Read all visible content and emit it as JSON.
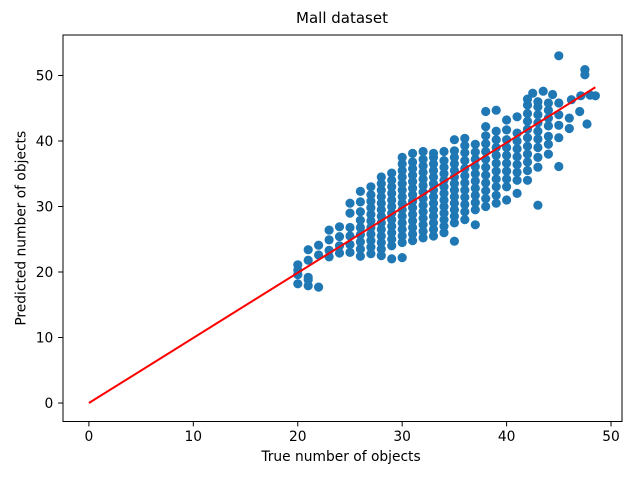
{
  "chart_data": {
    "type": "scatter",
    "title": "Mall dataset",
    "xlabel": "True number of objects",
    "ylabel": "Predicted number of objects",
    "xlim": [
      -2.48,
      51.05
    ],
    "ylim": [
      -2.82,
      56.18
    ],
    "xticks": [
      0,
      10,
      20,
      30,
      40,
      50
    ],
    "yticks": [
      0,
      10,
      20,
      30,
      40,
      50
    ],
    "grid": false,
    "legend": false,
    "marker_color": "#1f77b4",
    "identity_line": {
      "color": "#ff0000",
      "x": [
        0,
        48.5
      ],
      "y": [
        0,
        48.2
      ]
    },
    "points": [
      [
        20,
        18.2
      ],
      [
        20,
        19.6
      ],
      [
        20,
        20.3
      ],
      [
        20,
        21.1
      ],
      [
        21,
        17.9
      ],
      [
        21,
        18.8
      ],
      [
        21,
        19.2
      ],
      [
        21,
        21.8
      ],
      [
        21,
        23.4
      ],
      [
        22,
        17.7
      ],
      [
        22,
        22.6
      ],
      [
        22,
        24.1
      ],
      [
        23,
        22.3
      ],
      [
        23,
        23.3
      ],
      [
        23,
        24.9
      ],
      [
        23,
        26.4
      ],
      [
        24,
        22.9
      ],
      [
        24,
        24.0
      ],
      [
        24,
        25.4
      ],
      [
        24,
        26.9
      ],
      [
        25,
        23.0
      ],
      [
        25,
        24.2
      ],
      [
        25,
        25.5
      ],
      [
        25,
        26.8
      ],
      [
        25,
        29.0
      ],
      [
        25,
        30.5
      ],
      [
        26,
        22.4
      ],
      [
        26,
        23.5
      ],
      [
        26,
        24.6
      ],
      [
        26,
        25.7
      ],
      [
        26,
        26.8
      ],
      [
        26,
        27.9
      ],
      [
        26,
        29.2
      ],
      [
        26,
        30.7
      ],
      [
        26,
        32.3
      ],
      [
        27,
        22.8
      ],
      [
        27,
        23.8
      ],
      [
        27,
        24.8
      ],
      [
        27,
        25.8
      ],
      [
        27,
        26.8
      ],
      [
        27,
        27.8
      ],
      [
        27,
        28.8
      ],
      [
        27,
        29.8
      ],
      [
        27,
        30.8
      ],
      [
        27,
        31.8
      ],
      [
        27,
        33.0
      ],
      [
        28,
        22.5
      ],
      [
        28,
        23.5
      ],
      [
        28,
        24.5
      ],
      [
        28,
        25.5
      ],
      [
        28,
        26.5
      ],
      [
        28,
        27.5
      ],
      [
        28,
        28.5
      ],
      [
        28,
        29.5
      ],
      [
        28,
        30.5
      ],
      [
        28,
        31.5
      ],
      [
        28,
        32.5
      ],
      [
        28,
        33.5
      ],
      [
        28,
        34.5
      ],
      [
        29,
        22.0
      ],
      [
        29,
        24.0
      ],
      [
        29,
        25.0
      ],
      [
        29,
        26.0
      ],
      [
        29,
        27.0
      ],
      [
        29,
        28.0
      ],
      [
        29,
        29.0
      ],
      [
        29,
        30.0
      ],
      [
        29,
        31.0
      ],
      [
        29,
        32.0
      ],
      [
        29,
        33.0
      ],
      [
        29,
        34.0
      ],
      [
        29,
        35.1
      ],
      [
        30,
        22.2
      ],
      [
        30,
        24.5
      ],
      [
        30,
        25.5
      ],
      [
        30,
        26.5
      ],
      [
        30,
        27.5
      ],
      [
        30,
        28.5
      ],
      [
        30,
        29.5
      ],
      [
        30,
        30.5
      ],
      [
        30,
        31.5
      ],
      [
        30,
        32.5
      ],
      [
        30,
        33.5
      ],
      [
        30,
        34.5
      ],
      [
        30,
        35.5
      ],
      [
        30,
        36.5
      ],
      [
        30,
        37.5
      ],
      [
        31,
        24.8
      ],
      [
        31,
        25.8
      ],
      [
        31,
        26.8
      ],
      [
        31,
        27.8
      ],
      [
        31,
        28.8
      ],
      [
        31,
        29.8
      ],
      [
        31,
        30.8
      ],
      [
        31,
        31.8
      ],
      [
        31,
        32.8
      ],
      [
        31,
        33.8
      ],
      [
        31,
        34.8
      ],
      [
        31,
        35.8
      ],
      [
        31,
        36.8
      ],
      [
        31,
        38.1
      ],
      [
        32,
        25.2
      ],
      [
        32,
        26.2
      ],
      [
        32,
        27.2
      ],
      [
        32,
        28.2
      ],
      [
        32,
        29.2
      ],
      [
        32,
        30.2
      ],
      [
        32,
        31.2
      ],
      [
        32,
        32.2
      ],
      [
        32,
        33.2
      ],
      [
        32,
        34.2
      ],
      [
        32,
        35.2
      ],
      [
        32,
        36.2
      ],
      [
        32,
        37.2
      ],
      [
        32,
        38.4
      ],
      [
        33,
        25.5
      ],
      [
        33,
        26.5
      ],
      [
        33,
        27.5
      ],
      [
        33,
        28.5
      ],
      [
        33,
        29.5
      ],
      [
        33,
        30.5
      ],
      [
        33,
        31.5
      ],
      [
        33,
        32.5
      ],
      [
        33,
        33.5
      ],
      [
        33,
        34.5
      ],
      [
        33,
        35.5
      ],
      [
        33,
        36.5
      ],
      [
        33,
        37.5
      ],
      [
        33,
        38.1
      ],
      [
        34,
        26.0
      ],
      [
        34,
        27.0
      ],
      [
        34,
        28.0
      ],
      [
        34,
        29.0
      ],
      [
        34,
        30.0
      ],
      [
        34,
        31.0
      ],
      [
        34,
        32.0
      ],
      [
        34,
        33.0
      ],
      [
        34,
        34.0
      ],
      [
        34,
        35.0
      ],
      [
        34,
        36.0
      ],
      [
        34,
        37.0
      ],
      [
        34,
        38.4
      ],
      [
        35,
        24.7
      ],
      [
        35,
        27.5
      ],
      [
        35,
        28.5
      ],
      [
        35,
        29.5
      ],
      [
        35,
        30.5
      ],
      [
        35,
        31.5
      ],
      [
        35,
        32.5
      ],
      [
        35,
        33.5
      ],
      [
        35,
        34.5
      ],
      [
        35,
        35.5
      ],
      [
        35,
        36.5
      ],
      [
        35,
        37.5
      ],
      [
        35,
        38.5
      ],
      [
        35,
        40.2
      ],
      [
        36,
        28.0
      ],
      [
        36,
        29.2
      ],
      [
        36,
        30.3
      ],
      [
        36,
        31.4
      ],
      [
        36,
        32.5
      ],
      [
        36,
        33.6
      ],
      [
        36,
        34.7
      ],
      [
        36,
        35.8
      ],
      [
        36,
        37.0
      ],
      [
        36,
        38.2
      ],
      [
        36,
        39.3
      ],
      [
        36,
        40.4
      ],
      [
        37,
        27.2
      ],
      [
        37,
        29.5
      ],
      [
        37,
        30.6
      ],
      [
        37,
        31.7
      ],
      [
        37,
        32.8
      ],
      [
        37,
        33.9
      ],
      [
        37,
        35.0
      ],
      [
        37,
        36.1
      ],
      [
        37,
        37.2
      ],
      [
        37,
        38.3
      ],
      [
        37,
        39.5
      ],
      [
        38,
        30.0
      ],
      [
        38,
        31.2
      ],
      [
        38,
        32.4
      ],
      [
        38,
        33.6
      ],
      [
        38,
        34.8
      ],
      [
        38,
        36.0
      ],
      [
        38,
        37.2
      ],
      [
        38,
        38.4
      ],
      [
        38,
        39.6
      ],
      [
        38,
        40.8
      ],
      [
        38,
        42.2
      ],
      [
        38,
        44.5
      ],
      [
        39,
        30.5
      ],
      [
        39,
        31.7
      ],
      [
        39,
        33.0
      ],
      [
        39,
        34.2
      ],
      [
        39,
        35.4
      ],
      [
        39,
        36.6
      ],
      [
        39,
        37.8
      ],
      [
        39,
        39.0
      ],
      [
        39,
        40.2
      ],
      [
        39,
        41.5
      ],
      [
        39,
        44.7
      ],
      [
        40,
        31.0
      ],
      [
        40,
        33.0
      ],
      [
        40,
        34.2
      ],
      [
        40,
        35.4
      ],
      [
        40,
        36.6
      ],
      [
        40,
        37.8
      ],
      [
        40,
        39.0
      ],
      [
        40,
        40.2
      ],
      [
        40,
        41.7
      ],
      [
        40,
        43.2
      ],
      [
        41,
        32.0
      ],
      [
        41,
        34.0
      ],
      [
        41,
        35.2
      ],
      [
        41,
        36.4
      ],
      [
        41,
        37.6
      ],
      [
        41,
        38.8
      ],
      [
        41,
        40.0
      ],
      [
        41,
        41.2
      ],
      [
        41,
        43.7
      ],
      [
        42,
        34.0
      ],
      [
        42,
        35.5
      ],
      [
        42,
        36.8
      ],
      [
        42,
        38.0
      ],
      [
        42,
        39.2
      ],
      [
        42,
        40.5
      ],
      [
        42,
        41.8
      ],
      [
        42,
        43.0
      ],
      [
        42,
        44.2
      ],
      [
        42,
        45.5
      ],
      [
        42,
        46.4
      ],
      [
        42.5,
        47.3
      ],
      [
        43,
        30.2
      ],
      [
        43,
        36.0
      ],
      [
        43,
        37.5
      ],
      [
        43,
        39.0
      ],
      [
        43,
        40.3
      ],
      [
        43,
        41.5
      ],
      [
        43,
        42.8
      ],
      [
        43,
        44.0
      ],
      [
        43,
        45.2
      ],
      [
        43,
        46.0
      ],
      [
        43.5,
        47.6
      ],
      [
        44,
        38.0
      ],
      [
        44,
        39.5
      ],
      [
        44,
        40.7
      ],
      [
        44,
        42.3
      ],
      [
        44,
        43.5
      ],
      [
        44,
        44.7
      ],
      [
        44,
        45.8
      ],
      [
        44.4,
        47.1
      ],
      [
        45,
        36.1
      ],
      [
        45,
        40.5
      ],
      [
        45,
        42.4
      ],
      [
        45,
        44.0
      ],
      [
        45,
        45.8
      ],
      [
        45,
        53.0
      ],
      [
        46,
        41.9
      ],
      [
        46,
        43.5
      ],
      [
        46.2,
        46.3
      ],
      [
        47,
        44.5
      ],
      [
        47.1,
        46.9
      ],
      [
        47.5,
        50.1
      ],
      [
        47.5,
        50.9
      ],
      [
        47.7,
        42.6
      ],
      [
        48,
        47.0
      ],
      [
        48.5,
        46.9
      ]
    ]
  }
}
